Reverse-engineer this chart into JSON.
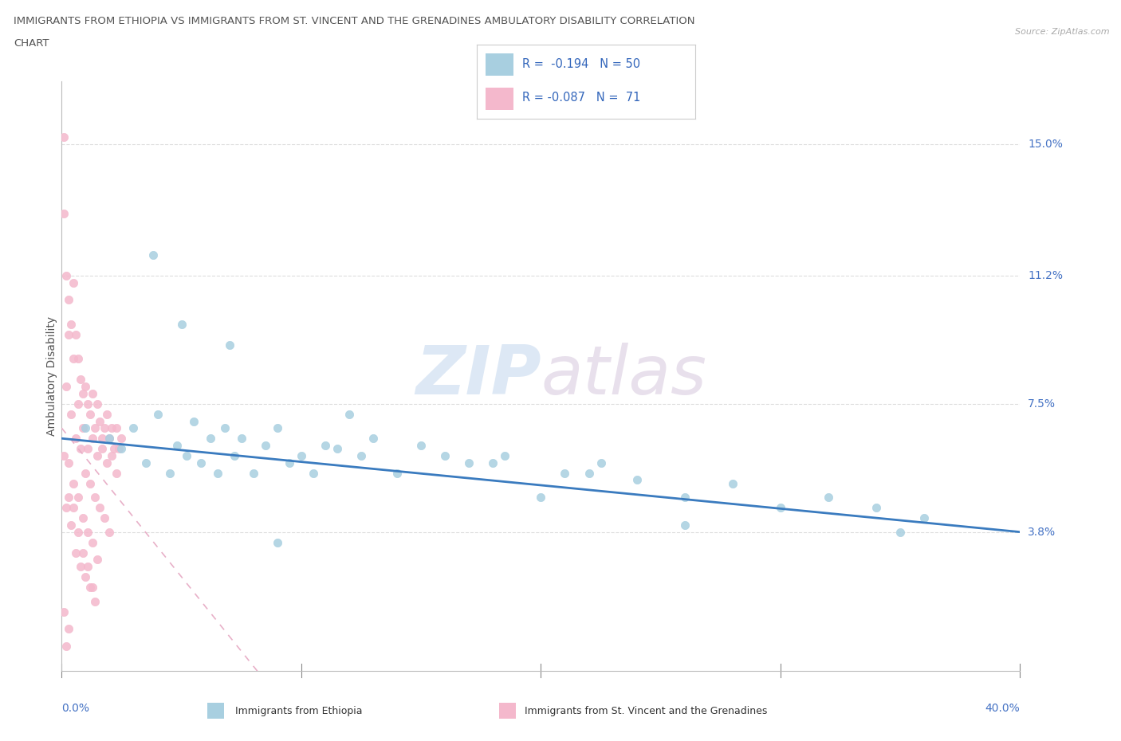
{
  "title_line1": "IMMIGRANTS FROM ETHIOPIA VS IMMIGRANTS FROM ST. VINCENT AND THE GRENADINES AMBULATORY DISABILITY CORRELATION",
  "title_line2": "CHART",
  "source": "Source: ZipAtlas.com",
  "ylabel": "Ambulatory Disability",
  "ytick_labels": [
    "3.8%",
    "7.5%",
    "11.2%",
    "15.0%"
  ],
  "ytick_values": [
    0.038,
    0.075,
    0.112,
    0.15
  ],
  "xlim": [
    0.0,
    0.4
  ],
  "ylim": [
    -0.002,
    0.168
  ],
  "legend_r1": "R =  -0.194",
  "legend_n1": "N = 50",
  "legend_r2": "R = -0.087",
  "legend_n2": "N =  71",
  "color_ethiopia": "#a8cfe0",
  "color_stvincent": "#f4b8cc",
  "color_trendline_ethiopia": "#3a7bbf",
  "color_trendline_stvincent": "#e8a0b8",
  "watermark_zip": "ZIP",
  "watermark_atlas": "atlas",
  "ethiopia_x": [
    0.01,
    0.02,
    0.025,
    0.03,
    0.035,
    0.04,
    0.045,
    0.048,
    0.052,
    0.055,
    0.058,
    0.062,
    0.065,
    0.068,
    0.072,
    0.075,
    0.08,
    0.085,
    0.09,
    0.095,
    0.1,
    0.105,
    0.11,
    0.12,
    0.125,
    0.13,
    0.14,
    0.15,
    0.16,
    0.17,
    0.185,
    0.2,
    0.21,
    0.225,
    0.24,
    0.26,
    0.28,
    0.3,
    0.32,
    0.34,
    0.36,
    0.05,
    0.07,
    0.09,
    0.18,
    0.22,
    0.26,
    0.35,
    0.038,
    0.115
  ],
  "ethiopia_y": [
    0.068,
    0.065,
    0.062,
    0.068,
    0.058,
    0.072,
    0.055,
    0.063,
    0.06,
    0.07,
    0.058,
    0.065,
    0.055,
    0.068,
    0.06,
    0.065,
    0.055,
    0.063,
    0.068,
    0.058,
    0.06,
    0.055,
    0.063,
    0.072,
    0.06,
    0.065,
    0.055,
    0.063,
    0.06,
    0.058,
    0.06,
    0.048,
    0.055,
    0.058,
    0.053,
    0.048,
    0.052,
    0.045,
    0.048,
    0.045,
    0.042,
    0.098,
    0.092,
    0.035,
    0.058,
    0.055,
    0.04,
    0.038,
    0.118,
    0.062
  ],
  "stvincent_x": [
    0.001,
    0.002,
    0.003,
    0.004,
    0.005,
    0.006,
    0.007,
    0.008,
    0.009,
    0.01,
    0.011,
    0.012,
    0.013,
    0.014,
    0.015,
    0.016,
    0.017,
    0.018,
    0.019,
    0.02,
    0.021,
    0.022,
    0.023,
    0.024,
    0.025,
    0.003,
    0.005,
    0.007,
    0.009,
    0.011,
    0.013,
    0.015,
    0.017,
    0.019,
    0.021,
    0.023,
    0.002,
    0.004,
    0.006,
    0.008,
    0.01,
    0.012,
    0.014,
    0.016,
    0.018,
    0.02,
    0.001,
    0.003,
    0.005,
    0.007,
    0.009,
    0.011,
    0.013,
    0.015,
    0.002,
    0.004,
    0.006,
    0.008,
    0.01,
    0.012,
    0.014,
    0.001,
    0.003,
    0.005,
    0.007,
    0.009,
    0.011,
    0.013,
    0.001,
    0.003,
    0.002
  ],
  "stvincent_y": [
    0.13,
    0.112,
    0.105,
    0.098,
    0.11,
    0.095,
    0.088,
    0.082,
    0.078,
    0.08,
    0.075,
    0.072,
    0.078,
    0.068,
    0.075,
    0.07,
    0.065,
    0.068,
    0.072,
    0.065,
    0.068,
    0.062,
    0.068,
    0.062,
    0.065,
    0.095,
    0.088,
    0.075,
    0.068,
    0.062,
    0.065,
    0.06,
    0.062,
    0.058,
    0.06,
    0.055,
    0.08,
    0.072,
    0.065,
    0.062,
    0.055,
    0.052,
    0.048,
    0.045,
    0.042,
    0.038,
    0.06,
    0.058,
    0.052,
    0.048,
    0.042,
    0.038,
    0.035,
    0.03,
    0.045,
    0.04,
    0.032,
    0.028,
    0.025,
    0.022,
    0.018,
    0.152,
    0.048,
    0.045,
    0.038,
    0.032,
    0.028,
    0.022,
    0.015,
    0.01,
    0.005
  ]
}
